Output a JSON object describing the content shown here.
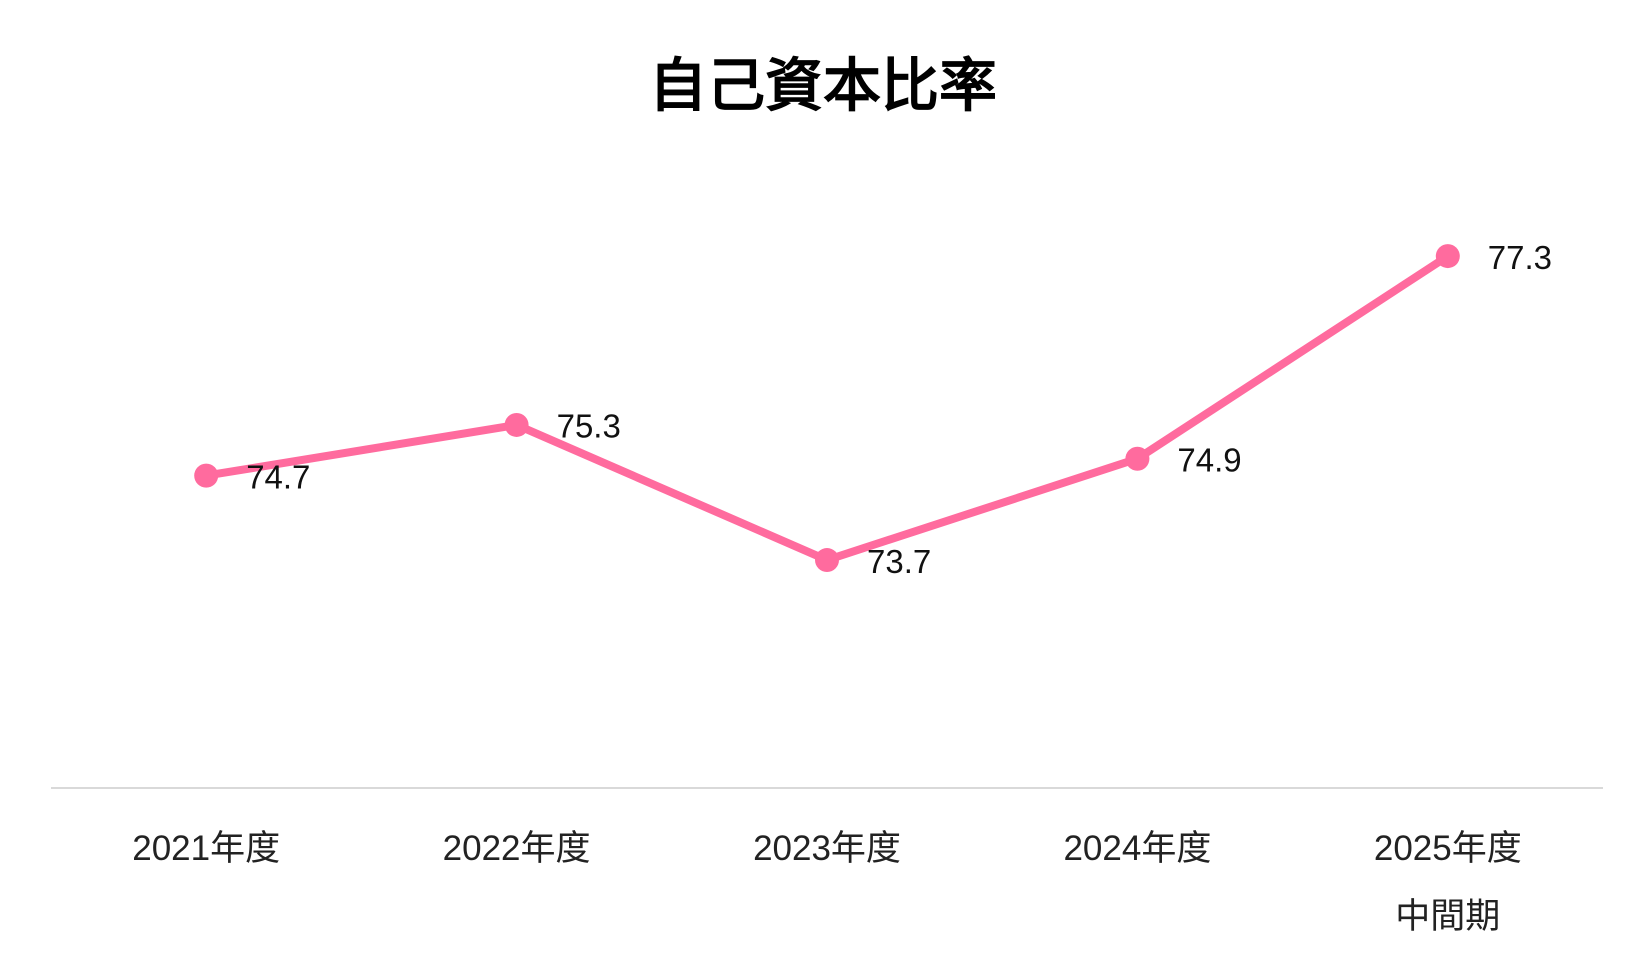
{
  "chart_data": {
    "type": "line",
    "title": "自己資本比率",
    "categories": [
      "2021年度",
      "2022年度",
      "2023年度",
      "2024年度",
      "2025年度\n中間期"
    ],
    "series": [
      {
        "name": "自己資本比率",
        "color": "#ff6b9e",
        "values": [
          74.7,
          75.3,
          73.7,
          74.9,
          77.3
        ]
      }
    ],
    "ylim": [
      71,
      78
    ]
  }
}
